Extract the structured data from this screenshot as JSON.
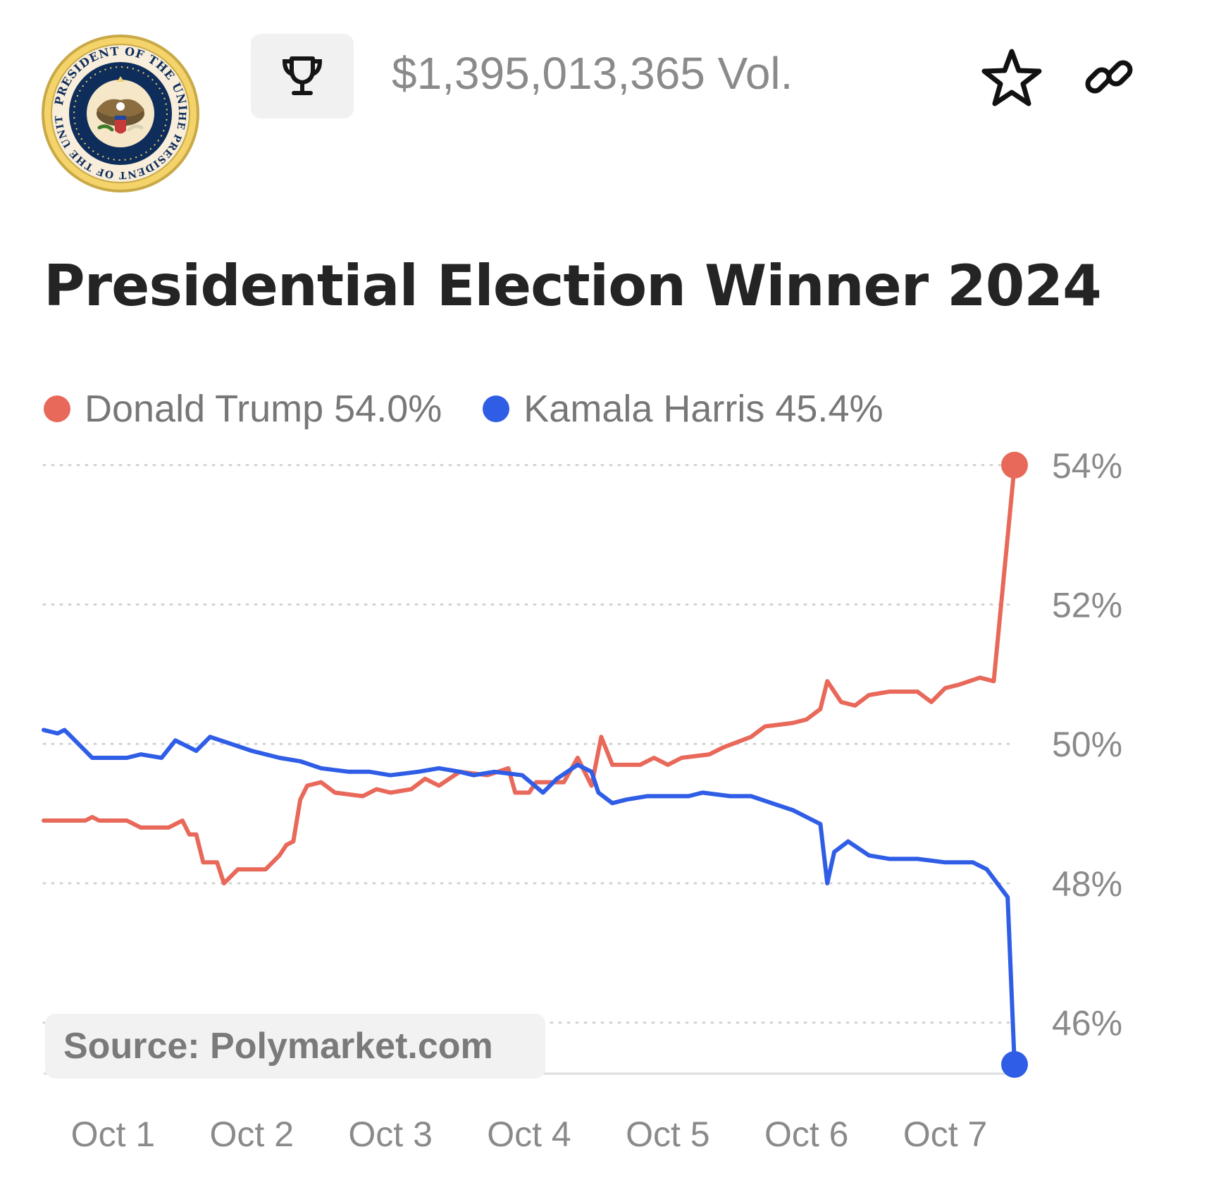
{
  "header": {
    "seal_text_top": "THE PRESIDENT OF THE UNITED",
    "seal_text_bottom": "SEAL OF THE PRESIDENT OF THE UNITED STATES",
    "trophy_icon": "trophy-icon",
    "volume": "$1,395,013,365 Vol.",
    "star_icon": "star-icon",
    "link_icon": "link-icon"
  },
  "title": "Presidential Election Winner 2024",
  "legend": [
    {
      "label": "Donald Trump 54.0%",
      "color": "#e8685a"
    },
    {
      "label": "Kamala Harris 45.4%",
      "color": "#2f5de6"
    }
  ],
  "source": "Source: Polymarket.com",
  "colors": {
    "trump": "#e8685a",
    "harris": "#2f5de6",
    "grid": "#d2d2d2",
    "axis_text": "#8a8a8a"
  },
  "chart_data": {
    "type": "line",
    "x_unit": "day",
    "x_ticks": [
      "Oct 1",
      "Oct 2",
      "Oct 3",
      "Oct 4",
      "Oct 5",
      "Oct 6",
      "Oct 7"
    ],
    "x_tick_positions": [
      1,
      2,
      3,
      4,
      5,
      6,
      7
    ],
    "y_ticks": [
      54,
      52,
      50,
      48,
      46
    ],
    "y_tick_labels": [
      "54%",
      "52%",
      "50%",
      "48%",
      "46%"
    ],
    "ylim": [
      45.4,
      54.2
    ],
    "xlim": [
      0.5,
      7.5
    ],
    "grid": true,
    "legend_position": "top-left",
    "series": [
      {
        "name": "Donald Trump",
        "color": "#e8685a",
        "points": [
          [
            0.5,
            48.9
          ],
          [
            0.8,
            48.9
          ],
          [
            0.85,
            48.95
          ],
          [
            0.9,
            48.9
          ],
          [
            1.1,
            48.9
          ],
          [
            1.2,
            48.8
          ],
          [
            1.4,
            48.8
          ],
          [
            1.5,
            48.9
          ],
          [
            1.55,
            48.7
          ],
          [
            1.6,
            48.7
          ],
          [
            1.65,
            48.3
          ],
          [
            1.75,
            48.3
          ],
          [
            1.8,
            48.0
          ],
          [
            1.9,
            48.2
          ],
          [
            2.1,
            48.2
          ],
          [
            2.15,
            48.3
          ],
          [
            2.2,
            48.4
          ],
          [
            2.25,
            48.55
          ],
          [
            2.3,
            48.6
          ],
          [
            2.35,
            49.2
          ],
          [
            2.4,
            49.4
          ],
          [
            2.5,
            49.45
          ],
          [
            2.6,
            49.3
          ],
          [
            2.8,
            49.25
          ],
          [
            2.9,
            49.35
          ],
          [
            3.0,
            49.3
          ],
          [
            3.15,
            49.35
          ],
          [
            3.25,
            49.5
          ],
          [
            3.35,
            49.4
          ],
          [
            3.5,
            49.6
          ],
          [
            3.7,
            49.55
          ],
          [
            3.85,
            49.65
          ],
          [
            3.9,
            49.3
          ],
          [
            4.0,
            49.3
          ],
          [
            4.05,
            49.45
          ],
          [
            4.25,
            49.45
          ],
          [
            4.35,
            49.8
          ],
          [
            4.45,
            49.4
          ],
          [
            4.52,
            50.1
          ],
          [
            4.6,
            49.7
          ],
          [
            4.8,
            49.7
          ],
          [
            4.9,
            49.8
          ],
          [
            5.0,
            49.7
          ],
          [
            5.1,
            49.8
          ],
          [
            5.3,
            49.85
          ],
          [
            5.4,
            49.95
          ],
          [
            5.6,
            50.1
          ],
          [
            5.7,
            50.25
          ],
          [
            5.9,
            50.3
          ],
          [
            6.0,
            50.35
          ],
          [
            6.1,
            50.5
          ],
          [
            6.15,
            50.9
          ],
          [
            6.25,
            50.6
          ],
          [
            6.35,
            50.55
          ],
          [
            6.45,
            50.7
          ],
          [
            6.6,
            50.75
          ],
          [
            6.8,
            50.75
          ],
          [
            6.9,
            50.6
          ],
          [
            7.0,
            50.8
          ],
          [
            7.1,
            50.85
          ],
          [
            7.25,
            50.95
          ],
          [
            7.35,
            50.9
          ],
          [
            7.5,
            54.0
          ]
        ]
      },
      {
        "name": "Kamala Harris",
        "color": "#2f5de6",
        "points": [
          [
            0.5,
            50.2
          ],
          [
            0.6,
            50.15
          ],
          [
            0.65,
            50.2
          ],
          [
            0.7,
            50.1
          ],
          [
            0.85,
            49.8
          ],
          [
            1.0,
            49.8
          ],
          [
            1.1,
            49.8
          ],
          [
            1.2,
            49.85
          ],
          [
            1.35,
            49.8
          ],
          [
            1.45,
            50.05
          ],
          [
            1.6,
            49.9
          ],
          [
            1.7,
            50.1
          ],
          [
            1.85,
            50.0
          ],
          [
            2.0,
            49.9
          ],
          [
            2.2,
            49.8
          ],
          [
            2.35,
            49.75
          ],
          [
            2.5,
            49.65
          ],
          [
            2.7,
            49.6
          ],
          [
            2.85,
            49.6
          ],
          [
            3.0,
            49.55
          ],
          [
            3.2,
            49.6
          ],
          [
            3.35,
            49.65
          ],
          [
            3.5,
            49.6
          ],
          [
            3.6,
            49.55
          ],
          [
            3.75,
            49.6
          ],
          [
            3.95,
            49.55
          ],
          [
            4.1,
            49.3
          ],
          [
            4.2,
            49.5
          ],
          [
            4.35,
            49.7
          ],
          [
            4.45,
            49.6
          ],
          [
            4.5,
            49.3
          ],
          [
            4.6,
            49.15
          ],
          [
            4.7,
            49.2
          ],
          [
            4.85,
            49.25
          ],
          [
            5.0,
            49.25
          ],
          [
            5.15,
            49.25
          ],
          [
            5.25,
            49.3
          ],
          [
            5.45,
            49.25
          ],
          [
            5.6,
            49.25
          ],
          [
            5.75,
            49.15
          ],
          [
            5.9,
            49.05
          ],
          [
            6.0,
            48.95
          ],
          [
            6.1,
            48.85
          ],
          [
            6.15,
            48.0
          ],
          [
            6.2,
            48.45
          ],
          [
            6.3,
            48.6
          ],
          [
            6.45,
            48.4
          ],
          [
            6.6,
            48.35
          ],
          [
            6.8,
            48.35
          ],
          [
            7.0,
            48.3
          ],
          [
            7.2,
            48.3
          ],
          [
            7.3,
            48.2
          ],
          [
            7.45,
            47.8
          ],
          [
            7.5,
            45.4
          ]
        ]
      }
    ]
  }
}
